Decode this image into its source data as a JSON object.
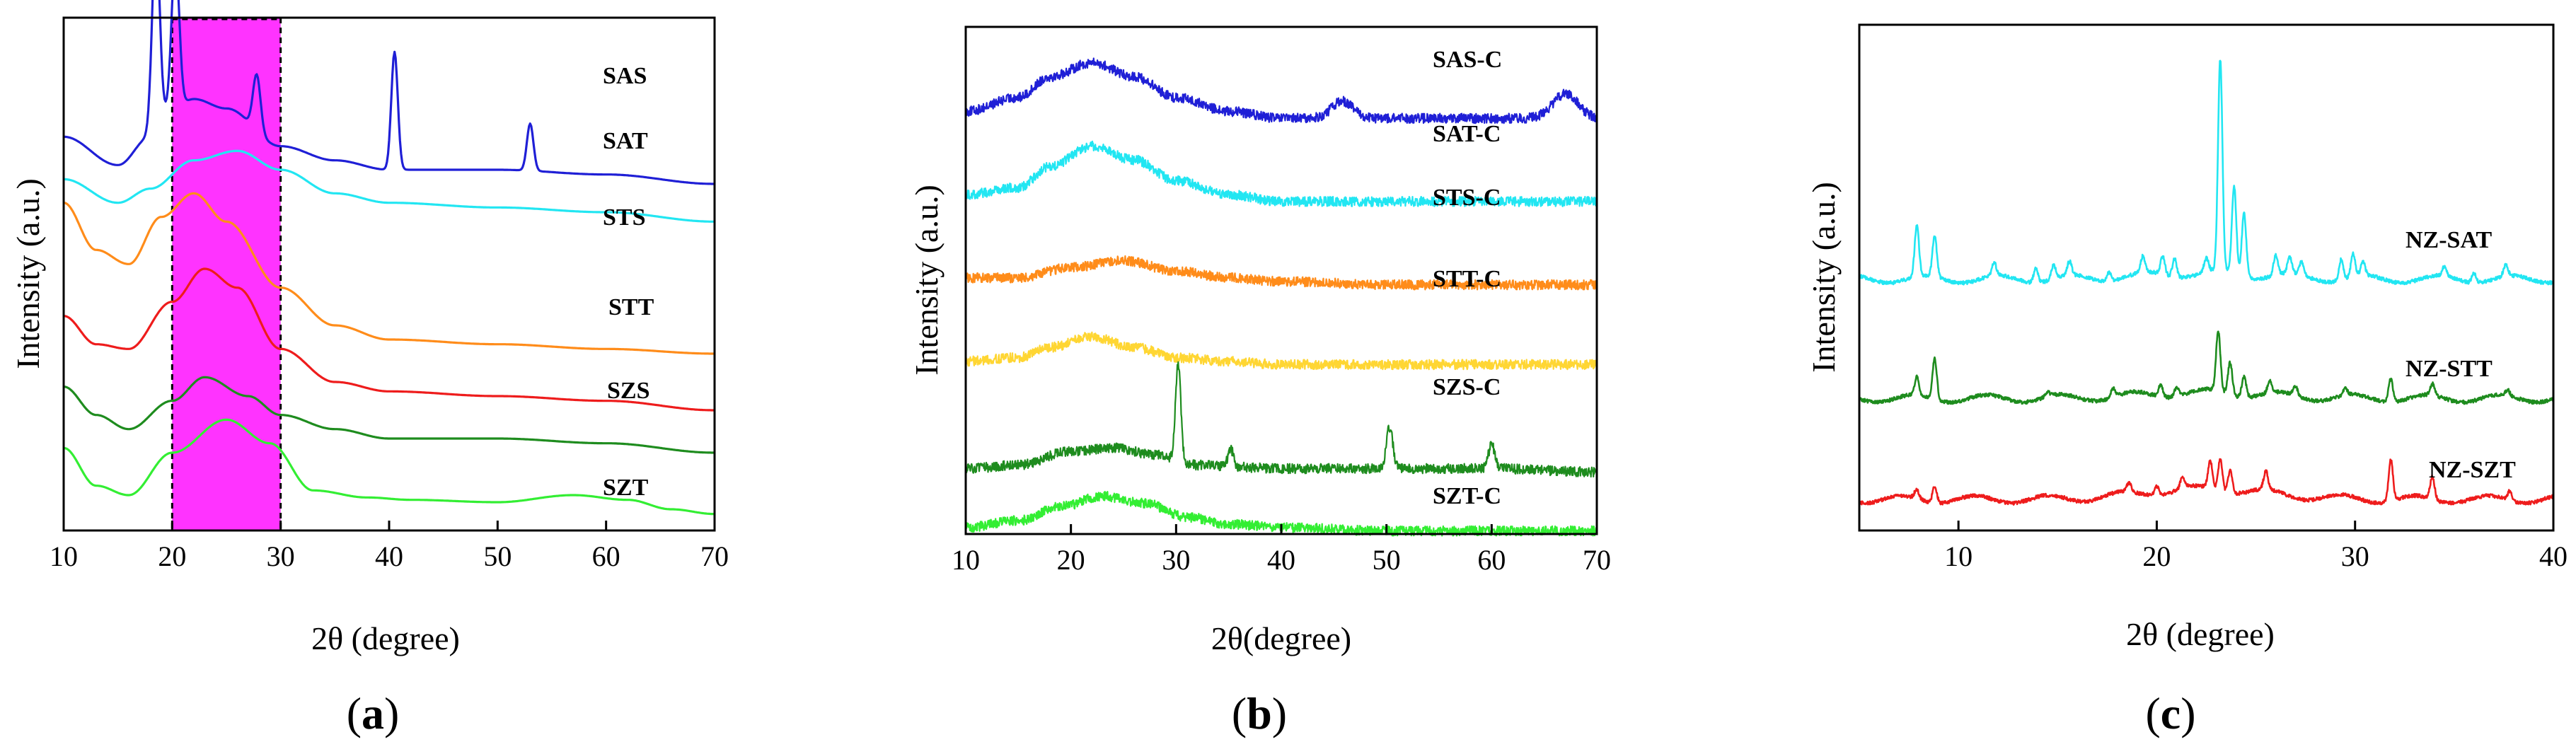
{
  "chart_data": [
    {
      "type": "line",
      "panel_label": "(a)",
      "panel_letter": "a",
      "xlabel": "2θ (degree)",
      "ylabel": "Intensity (a.u.)",
      "xlim": [
        10,
        70
      ],
      "xticks": [
        "10",
        "20",
        "30",
        "40",
        "50",
        "60",
        "70"
      ],
      "highlight": {
        "x_range": [
          20,
          30
        ],
        "color": "#ff33ff"
      },
      "series": [
        {
          "name": "SAS",
          "color": "#1f1fd6",
          "peaks": [
            [
              18.5,
              4.2,
              0.35
            ],
            [
              20.3,
              3.2,
              0.35
            ],
            [
              27.8,
              1.2,
              0.35
            ],
            [
              40.5,
              2.5,
              0.3
            ],
            [
              53.0,
              1.0,
              0.3
            ]
          ],
          "points": [
            [
              10,
              8.0
            ],
            [
              15,
              7.4
            ],
            [
              18,
              8.0
            ],
            [
              20,
              8.6
            ],
            [
              22,
              8.8
            ],
            [
              25,
              8.6
            ],
            [
              30,
              7.8
            ],
            [
              35,
              7.5
            ],
            [
              40,
              7.3
            ],
            [
              50,
              7.3
            ],
            [
              60,
              7.2
            ],
            [
              70,
              7.0
            ]
          ]
        },
        {
          "name": "SAT",
          "color": "#22e6f2",
          "points": [
            [
              10,
              7.1
            ],
            [
              15,
              6.6
            ],
            [
              18,
              6.9
            ],
            [
              22,
              7.5
            ],
            [
              26,
              7.7
            ],
            [
              30,
              7.3
            ],
            [
              35,
              6.8
            ],
            [
              40,
              6.6
            ],
            [
              50,
              6.5
            ],
            [
              60,
              6.4
            ],
            [
              70,
              6.2
            ]
          ]
        },
        {
          "name": "STS",
          "color": "#ff8c1a",
          "points": [
            [
              10,
              6.6
            ],
            [
              13,
              5.6
            ],
            [
              16,
              5.3
            ],
            [
              19,
              6.3
            ],
            [
              22,
              6.8
            ],
            [
              25,
              6.2
            ],
            [
              30,
              4.8
            ],
            [
              35,
              4.0
            ],
            [
              40,
              3.7
            ],
            [
              50,
              3.6
            ],
            [
              60,
              3.5
            ],
            [
              70,
              3.4
            ]
          ]
        },
        {
          "name": "STT",
          "color": "#ee1c1c",
          "points": [
            [
              10,
              4.2
            ],
            [
              13,
              3.6
            ],
            [
              16,
              3.5
            ],
            [
              20,
              4.5
            ],
            [
              23,
              5.2
            ],
            [
              26,
              4.8
            ],
            [
              30,
              3.5
            ],
            [
              35,
              2.8
            ],
            [
              40,
              2.6
            ],
            [
              50,
              2.5
            ],
            [
              60,
              2.4
            ],
            [
              70,
              2.2
            ]
          ]
        },
        {
          "name": "SZS",
          "color": "#1e8c1e",
          "points": [
            [
              10,
              2.7
            ],
            [
              13,
              2.1
            ],
            [
              16,
              1.8
            ],
            [
              20,
              2.4
            ],
            [
              23,
              2.9
            ],
            [
              27,
              2.5
            ],
            [
              30,
              2.1
            ],
            [
              35,
              1.8
            ],
            [
              40,
              1.6
            ],
            [
              50,
              1.6
            ],
            [
              60,
              1.5
            ],
            [
              70,
              1.3
            ]
          ]
        },
        {
          "name": "SZT",
          "color": "#33ee33",
          "points": [
            [
              10,
              1.4
            ],
            [
              13,
              0.6
            ],
            [
              16,
              0.4
            ],
            [
              20,
              1.3
            ],
            [
              25,
              2.0
            ],
            [
              29,
              1.5
            ],
            [
              33,
              0.5
            ],
            [
              38,
              0.35
            ],
            [
              42,
              0.3
            ],
            [
              50,
              0.25
            ],
            [
              57,
              0.4
            ],
            [
              62,
              0.3
            ],
            [
              66,
              0.1
            ],
            [
              70,
              0.0
            ]
          ]
        }
      ]
    },
    {
      "type": "line",
      "panel_label": "(b)",
      "panel_letter": "b",
      "xlabel": "2θ(degree)",
      "ylabel": "Intensity (a.u.)",
      "xlim": [
        10,
        70
      ],
      "xticks": [
        "10",
        "20",
        "30",
        "40",
        "50",
        "60",
        "70"
      ],
      "series": [
        {
          "name": "SAS-C",
          "color": "#1f1fd6",
          "peaks": [
            [
              45.8,
              0.25,
              1.0
            ],
            [
              67.0,
              0.35,
              1.2
            ]
          ],
          "points": [
            [
              10,
              6.1
            ],
            [
              15,
              6.3
            ],
            [
              18,
              6.6
            ],
            [
              22,
              6.8
            ],
            [
              26,
              6.6
            ],
            [
              30,
              6.3
            ],
            [
              35,
              6.1
            ],
            [
              40,
              6.0
            ],
            [
              50,
              6.0
            ],
            [
              60,
              6.0
            ],
            [
              70,
              6.0
            ]
          ]
        },
        {
          "name": "SAT-C",
          "color": "#22e6f2",
          "points": [
            [
              10,
              4.9
            ],
            [
              15,
              5.0
            ],
            [
              18,
              5.3
            ],
            [
              22,
              5.6
            ],
            [
              26,
              5.4
            ],
            [
              30,
              5.1
            ],
            [
              35,
              4.9
            ],
            [
              40,
              4.8
            ],
            [
              50,
              4.8
            ],
            [
              60,
              4.8
            ],
            [
              70,
              4.8
            ]
          ]
        },
        {
          "name": "STS-C",
          "color": "#ff8c1a",
          "points": [
            [
              10,
              3.7
            ],
            [
              15,
              3.7
            ],
            [
              20,
              3.85
            ],
            [
              25,
              3.95
            ],
            [
              30,
              3.8
            ],
            [
              35,
              3.7
            ],
            [
              40,
              3.65
            ],
            [
              50,
              3.6
            ],
            [
              60,
              3.6
            ],
            [
              70,
              3.6
            ]
          ]
        },
        {
          "name": "STT-C",
          "color": "#ffd633",
          "points": [
            [
              10,
              2.5
            ],
            [
              15,
              2.55
            ],
            [
              18,
              2.7
            ],
            [
              22,
              2.85
            ],
            [
              26,
              2.7
            ],
            [
              30,
              2.55
            ],
            [
              35,
              2.5
            ],
            [
              40,
              2.45
            ],
            [
              50,
              2.45
            ],
            [
              60,
              2.45
            ],
            [
              70,
              2.45
            ]
          ]
        },
        {
          "name": "SZS-C",
          "color": "#1e8c1e",
          "peaks": [
            [
              30.2,
              1.4,
              0.25
            ],
            [
              35.2,
              0.25,
              0.25
            ],
            [
              50.3,
              0.6,
              0.3
            ],
            [
              60.0,
              0.35,
              0.3
            ]
          ],
          "points": [
            [
              10,
              0.95
            ],
            [
              15,
              1.0
            ],
            [
              20,
              1.2
            ],
            [
              24,
              1.25
            ],
            [
              28,
              1.15
            ],
            [
              32,
              1.0
            ],
            [
              40,
              0.95
            ],
            [
              50,
              0.95
            ],
            [
              60,
              0.95
            ],
            [
              70,
              0.9
            ]
          ]
        },
        {
          "name": "SZT-C",
          "color": "#33ee33",
          "points": [
            [
              10,
              0.1
            ],
            [
              15,
              0.2
            ],
            [
              19,
              0.4
            ],
            [
              23,
              0.55
            ],
            [
              27,
              0.45
            ],
            [
              31,
              0.25
            ],
            [
              35,
              0.15
            ],
            [
              40,
              0.1
            ],
            [
              50,
              0.05
            ],
            [
              60,
              0.05
            ],
            [
              70,
              0.05
            ]
          ]
        }
      ]
    },
    {
      "type": "line",
      "panel_label": "(c)",
      "panel_letter": "c",
      "xlabel": "2θ (degree)",
      "ylabel": "Intensity (a.u.)",
      "xlim": [
        5,
        40
      ],
      "xticks": [
        "10",
        "20",
        "30",
        "40"
      ],
      "series": [
        {
          "name": "NZ-SAT",
          "color": "#22e6f2",
          "baseline": 5.2,
          "peaks": [
            [
              7.9,
              1.1
            ],
            [
              8.8,
              0.9
            ],
            [
              11.8,
              0.3
            ],
            [
              13.9,
              0.3
            ],
            [
              14.8,
              0.3
            ],
            [
              15.6,
              0.3
            ],
            [
              17.6,
              0.2
            ],
            [
              19.3,
              0.35
            ],
            [
              20.3,
              0.4
            ],
            [
              20.9,
              0.4
            ],
            [
              22.5,
              0.3
            ],
            [
              23.2,
              4.6
            ],
            [
              23.9,
              1.9
            ],
            [
              24.4,
              1.4
            ],
            [
              26.0,
              0.45
            ],
            [
              26.7,
              0.35
            ],
            [
              27.3,
              0.3
            ],
            [
              29.3,
              0.45
            ],
            [
              29.9,
              0.5
            ],
            [
              30.4,
              0.3
            ],
            [
              34.5,
              0.2
            ],
            [
              36.0,
              0.2
            ],
            [
              37.6,
              0.25
            ]
          ]
        },
        {
          "name": "NZ-STT",
          "color": "#1e8c1e",
          "baseline": 2.6,
          "peaks": [
            [
              7.9,
              0.4
            ],
            [
              8.8,
              0.9
            ],
            [
              14.5,
              0.1
            ],
            [
              17.8,
              0.2
            ],
            [
              20.2,
              0.25
            ],
            [
              21.0,
              0.2
            ],
            [
              23.1,
              1.3
            ],
            [
              23.7,
              0.7
            ],
            [
              24.4,
              0.45
            ],
            [
              25.7,
              0.25
            ],
            [
              27.0,
              0.2
            ],
            [
              29.5,
              0.15
            ],
            [
              31.8,
              0.5
            ],
            [
              33.9,
              0.25
            ],
            [
              37.7,
              0.12
            ]
          ]
        },
        {
          "name": "NZ-SZT",
          "color": "#ee1c1c",
          "baseline": 0.4,
          "peaks": [
            [
              7.9,
              0.2
            ],
            [
              8.8,
              0.35
            ],
            [
              18.6,
              0.2
            ],
            [
              20.0,
              0.2
            ],
            [
              21.3,
              0.25
            ],
            [
              22.7,
              0.6
            ],
            [
              23.2,
              0.7
            ],
            [
              23.7,
              0.5
            ],
            [
              25.5,
              0.4
            ],
            [
              31.8,
              0.9
            ],
            [
              33.9,
              0.5
            ],
            [
              37.8,
              0.2
            ]
          ]
        }
      ]
    }
  ]
}
